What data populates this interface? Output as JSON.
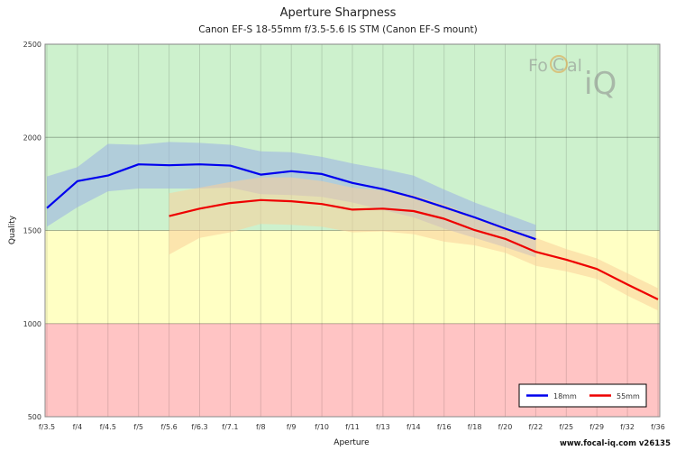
{
  "chart_data": {
    "type": "line",
    "title": "Aperture Sharpness",
    "subtitle": "Canon EF-S 18-55mm f/3.5-5.6 IS STM (Canon EF-S mount)",
    "xlabel": "Aperture",
    "ylabel": "Quality",
    "x_categories": [
      "f/3.5",
      "f/4",
      "f/4.5",
      "f/5",
      "f/5.6",
      "f/6.3",
      "f/7.1",
      "f/8",
      "f/9",
      "f/10",
      "f/11",
      "f/13",
      "f/14",
      "f/16",
      "f/18",
      "f/20",
      "f/22",
      "f/25",
      "f/29",
      "f/32",
      "f/36"
    ],
    "y_ticks": [
      500,
      1000,
      1500,
      2000,
      2500
    ],
    "ylim": [
      500,
      2500
    ],
    "zones": [
      {
        "from": 500,
        "to": 1000,
        "color": "#ffc4c4"
      },
      {
        "from": 1000,
        "to": 1500,
        "color": "#ffffc4"
      },
      {
        "from": 1500,
        "to": 2500,
        "color": "#cdf1cd"
      }
    ],
    "grid": true,
    "legend_position": "bottom-right",
    "series": [
      {
        "name": "18mm",
        "color": "#0000ee",
        "band_color": "#9aaee6",
        "x": [
          "f/3.5",
          "f/4",
          "f/4.5",
          "f/5",
          "f/5.6",
          "f/6.3",
          "f/7.1",
          "f/8",
          "f/9",
          "f/10",
          "f/11",
          "f/13",
          "f/14",
          "f/16",
          "f/18",
          "f/20",
          "f/22"
        ],
        "values": [
          1620,
          1765,
          1795,
          1855,
          1850,
          1855,
          1848,
          1800,
          1818,
          1803,
          1755,
          1722,
          1678,
          1625,
          1570,
          1510,
          1453
        ],
        "upper": [
          1790,
          1840,
          1965,
          1960,
          1975,
          1970,
          1960,
          1925,
          1920,
          1895,
          1860,
          1830,
          1795,
          1720,
          1650,
          1590,
          1530
        ],
        "lower": [
          1520,
          1625,
          1710,
          1725,
          1725,
          1725,
          1730,
          1695,
          1690,
          1680,
          1650,
          1610,
          1570,
          1510,
          1460,
          1410,
          1355
        ]
      },
      {
        "name": "55mm",
        "color": "#ee0000",
        "band_color": "#f9cf9a",
        "x": [
          "f/5.6",
          "f/6.3",
          "f/7.1",
          "f/8",
          "f/9",
          "f/10",
          "f/11",
          "f/13",
          "f/14",
          "f/16",
          "f/18",
          "f/20",
          "f/22",
          "f/25",
          "f/29",
          "f/32",
          "f/36"
        ],
        "values": [
          1577,
          1617,
          1647,
          1663,
          1657,
          1642,
          1612,
          1617,
          1604,
          1563,
          1502,
          1455,
          1385,
          1343,
          1293,
          1210,
          1130
        ],
        "upper": [
          1700,
          1730,
          1760,
          1785,
          1785,
          1765,
          1730,
          1715,
          1690,
          1640,
          1575,
          1520,
          1460,
          1400,
          1350,
          1270,
          1190
        ],
        "lower": [
          1370,
          1460,
          1490,
          1535,
          1530,
          1520,
          1490,
          1495,
          1480,
          1440,
          1420,
          1380,
          1310,
          1280,
          1240,
          1150,
          1070
        ]
      }
    ]
  },
  "watermark": {
    "text_a": "Fo",
    "text_b": "C",
    "text_c": "al",
    "text_d": "iQ"
  },
  "footer": "www.focal-iq.com  v26135"
}
